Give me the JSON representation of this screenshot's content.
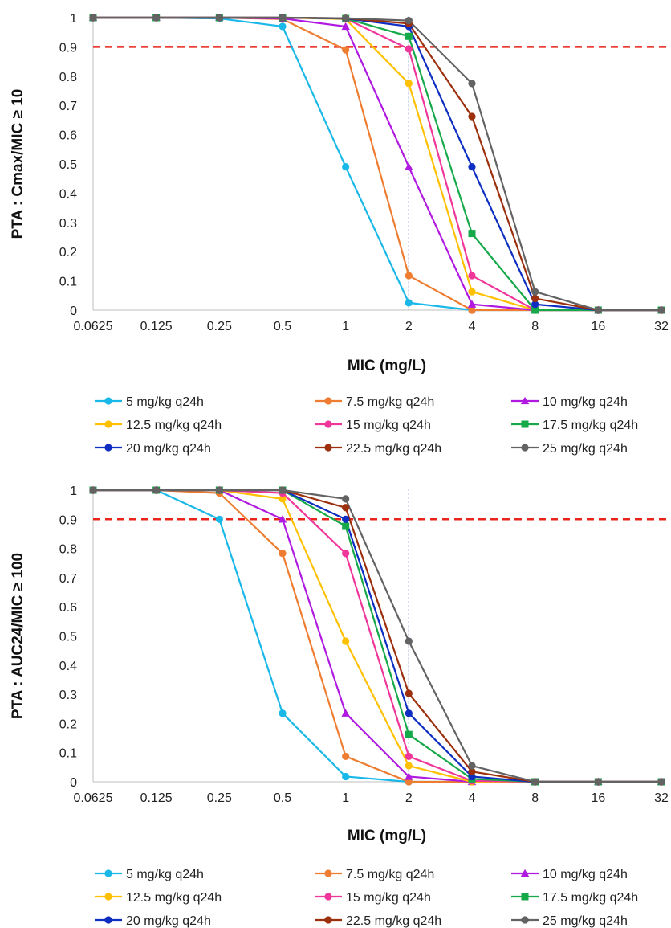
{
  "chart_data": [
    {
      "type": "line",
      "title": "",
      "xlabel": "MIC (mg/L)",
      "ylabel": "PTA : Cmax/MIC ≥ 10",
      "x": [
        "0.0625",
        "0.125",
        "0.25",
        "0.5",
        "1",
        "2",
        "4",
        "8",
        "16",
        "32"
      ],
      "ylim": [
        0,
        1
      ],
      "yticks": [
        "0",
        "0.1",
        "0.2",
        "0.3",
        "0.4",
        "0.5",
        "0.6",
        "0.7",
        "0.8",
        "0.9",
        "1"
      ],
      "grid": false,
      "legend_position": "bottom",
      "reference_lines": [
        {
          "axis": "y",
          "value": 0.9,
          "color": "#e8241b",
          "style": "dashed"
        },
        {
          "axis": "x",
          "value": "2",
          "color": "#1f3b8c",
          "style": "dotted"
        }
      ],
      "series": [
        {
          "name": "5 mg/kg q24h",
          "color": "#1ab8e8",
          "marker": "circle",
          "values": [
            1,
            1,
            0.997,
            0.97,
            0.49,
            0.025,
            0,
            0,
            0,
            0
          ]
        },
        {
          "name": "7.5 mg/kg q24h",
          "color": "#ee7d31",
          "marker": "circle",
          "values": [
            1,
            1,
            1,
            0.995,
            0.89,
            0.118,
            0,
            0,
            0,
            0
          ]
        },
        {
          "name": "10 mg/kg q24h",
          "color": "#b01ae0",
          "marker": "triangle",
          "values": [
            1,
            1,
            1,
            0.997,
            0.97,
            0.49,
            0.02,
            0,
            0,
            0
          ]
        },
        {
          "name": "12.5 mg/kg q24h",
          "color": "#ffc000",
          "marker": "circle",
          "values": [
            1,
            1,
            1,
            1,
            0.995,
            0.775,
            0.063,
            0,
            0,
            0
          ]
        },
        {
          "name": "15 mg/kg q24h",
          "color": "#f0369a",
          "marker": "circle",
          "values": [
            1,
            1,
            1,
            1,
            0.997,
            0.893,
            0.118,
            0,
            0,
            0
          ]
        },
        {
          "name": "17.5 mg/kg q24h",
          "color": "#16a94a",
          "marker": "square",
          "values": [
            1,
            1,
            1,
            1,
            0.997,
            0.936,
            0.262,
            0,
            0,
            0
          ]
        },
        {
          "name": "20 mg/kg q24h",
          "color": "#0e2ec2",
          "marker": "circle",
          "values": [
            1,
            1,
            1,
            1,
            0.997,
            0.97,
            0.49,
            0.02,
            0,
            0
          ]
        },
        {
          "name": "22.5 mg/kg q24h",
          "color": "#9c2f0c",
          "marker": "circle",
          "values": [
            1,
            1,
            1,
            1,
            0.998,
            0.98,
            0.662,
            0.04,
            0,
            0
          ]
        },
        {
          "name": "25 mg/kg q24h",
          "color": "#636363",
          "marker": "circle",
          "values": [
            1,
            1,
            1,
            1,
            0.998,
            0.99,
            0.775,
            0.063,
            0,
            0
          ]
        }
      ]
    },
    {
      "type": "line",
      "title": "",
      "xlabel": "MIC (mg/L)",
      "ylabel": "PTA : AUC24/MIC ≥ 100",
      "x": [
        "0.0625",
        "0.125",
        "0.25",
        "0.5",
        "1",
        "2",
        "4",
        "8",
        "16",
        "32"
      ],
      "ylim": [
        0,
        1
      ],
      "yticks": [
        "0",
        "0.1",
        "0.2",
        "0.3",
        "0.4",
        "0.5",
        "0.6",
        "0.7",
        "0.8",
        "0.9",
        "1"
      ],
      "grid": false,
      "legend_position": "bottom",
      "reference_lines": [
        {
          "axis": "y",
          "value": 0.9,
          "color": "#e8241b",
          "style": "dashed"
        },
        {
          "axis": "x",
          "value": "2",
          "color": "#1f3b8c",
          "style": "dotted"
        }
      ],
      "series": [
        {
          "name": "5 mg/kg q24h",
          "color": "#1ab8e8",
          "marker": "circle",
          "values": [
            1,
            1,
            0.9,
            0.235,
            0.018,
            0,
            0,
            0,
            0,
            0
          ]
        },
        {
          "name": "7.5 mg/kg q24h",
          "color": "#ee7d31",
          "marker": "circle",
          "values": [
            1,
            1,
            0.99,
            0.783,
            0.087,
            0,
            0,
            0,
            0,
            0
          ]
        },
        {
          "name": "10 mg/kg q24h",
          "color": "#b01ae0",
          "marker": "triangle",
          "values": [
            1,
            1,
            1,
            0.9,
            0.235,
            0.018,
            0,
            0,
            0,
            0
          ]
        },
        {
          "name": "12.5 mg/kg q24h",
          "color": "#ffc000",
          "marker": "circle",
          "values": [
            1,
            1,
            1,
            0.97,
            0.482,
            0.055,
            0,
            0,
            0,
            0
          ]
        },
        {
          "name": "15 mg/kg q24h",
          "color": "#f0369a",
          "marker": "circle",
          "values": [
            1,
            1,
            1,
            0.99,
            0.783,
            0.087,
            0.003,
            0,
            0,
            0
          ]
        },
        {
          "name": "17.5 mg/kg q24h",
          "color": "#16a94a",
          "marker": "square",
          "values": [
            1,
            1,
            1,
            1,
            0.876,
            0.162,
            0.01,
            0,
            0,
            0
          ]
        },
        {
          "name": "20 mg/kg q24h",
          "color": "#0e2ec2",
          "marker": "circle",
          "values": [
            1,
            1,
            1,
            1,
            0.9,
            0.235,
            0.018,
            0,
            0,
            0
          ]
        },
        {
          "name": "22.5 mg/kg q24h",
          "color": "#9c2f0c",
          "marker": "circle",
          "values": [
            1,
            1,
            1,
            1,
            0.94,
            0.303,
            0.035,
            0,
            0,
            0
          ]
        },
        {
          "name": "25 mg/kg q24h",
          "color": "#636363",
          "marker": "circle",
          "values": [
            1,
            1,
            1,
            1,
            0.97,
            0.482,
            0.055,
            0,
            0,
            0
          ]
        }
      ]
    }
  ]
}
